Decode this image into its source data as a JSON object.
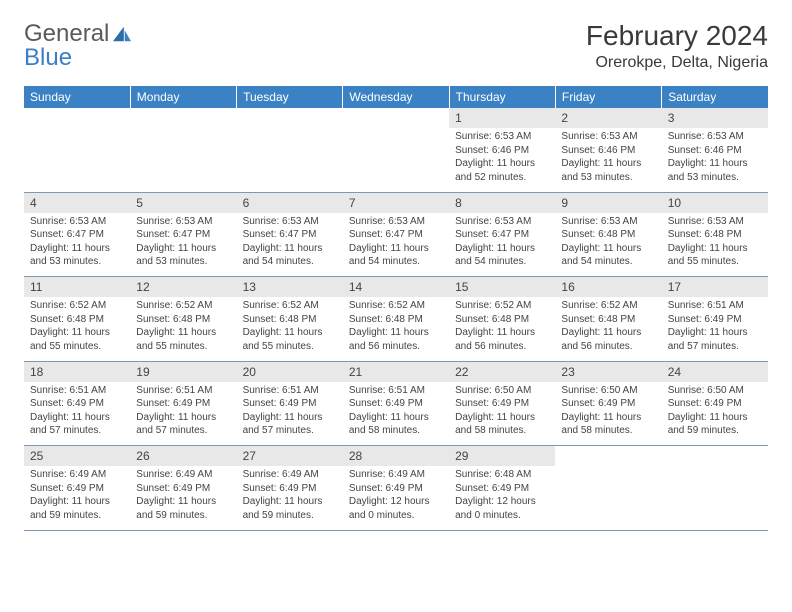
{
  "brand": {
    "word1": "General",
    "word2": "Blue"
  },
  "title": "February 2024",
  "location": "Orerokpe, Delta, Nigeria",
  "colors": {
    "header_bg": "#3b82c4",
    "header_text": "#ffffff",
    "daynum_bg": "#e8e8e8",
    "text": "#444444",
    "row_divider": "#7a98b8",
    "logo_gray": "#5a5a5a",
    "logo_blue": "#3b7fc4"
  },
  "weekdays": [
    "Sunday",
    "Monday",
    "Tuesday",
    "Wednesday",
    "Thursday",
    "Friday",
    "Saturday"
  ],
  "weeks": [
    [
      null,
      null,
      null,
      null,
      {
        "n": "1",
        "sr": "Sunrise: 6:53 AM",
        "ss": "Sunset: 6:46 PM",
        "d1": "Daylight: 11 hours",
        "d2": "and 52 minutes."
      },
      {
        "n": "2",
        "sr": "Sunrise: 6:53 AM",
        "ss": "Sunset: 6:46 PM",
        "d1": "Daylight: 11 hours",
        "d2": "and 53 minutes."
      },
      {
        "n": "3",
        "sr": "Sunrise: 6:53 AM",
        "ss": "Sunset: 6:46 PM",
        "d1": "Daylight: 11 hours",
        "d2": "and 53 minutes."
      }
    ],
    [
      {
        "n": "4",
        "sr": "Sunrise: 6:53 AM",
        "ss": "Sunset: 6:47 PM",
        "d1": "Daylight: 11 hours",
        "d2": "and 53 minutes."
      },
      {
        "n": "5",
        "sr": "Sunrise: 6:53 AM",
        "ss": "Sunset: 6:47 PM",
        "d1": "Daylight: 11 hours",
        "d2": "and 53 minutes."
      },
      {
        "n": "6",
        "sr": "Sunrise: 6:53 AM",
        "ss": "Sunset: 6:47 PM",
        "d1": "Daylight: 11 hours",
        "d2": "and 54 minutes."
      },
      {
        "n": "7",
        "sr": "Sunrise: 6:53 AM",
        "ss": "Sunset: 6:47 PM",
        "d1": "Daylight: 11 hours",
        "d2": "and 54 minutes."
      },
      {
        "n": "8",
        "sr": "Sunrise: 6:53 AM",
        "ss": "Sunset: 6:47 PM",
        "d1": "Daylight: 11 hours",
        "d2": "and 54 minutes."
      },
      {
        "n": "9",
        "sr": "Sunrise: 6:53 AM",
        "ss": "Sunset: 6:48 PM",
        "d1": "Daylight: 11 hours",
        "d2": "and 54 minutes."
      },
      {
        "n": "10",
        "sr": "Sunrise: 6:53 AM",
        "ss": "Sunset: 6:48 PM",
        "d1": "Daylight: 11 hours",
        "d2": "and 55 minutes."
      }
    ],
    [
      {
        "n": "11",
        "sr": "Sunrise: 6:52 AM",
        "ss": "Sunset: 6:48 PM",
        "d1": "Daylight: 11 hours",
        "d2": "and 55 minutes."
      },
      {
        "n": "12",
        "sr": "Sunrise: 6:52 AM",
        "ss": "Sunset: 6:48 PM",
        "d1": "Daylight: 11 hours",
        "d2": "and 55 minutes."
      },
      {
        "n": "13",
        "sr": "Sunrise: 6:52 AM",
        "ss": "Sunset: 6:48 PM",
        "d1": "Daylight: 11 hours",
        "d2": "and 55 minutes."
      },
      {
        "n": "14",
        "sr": "Sunrise: 6:52 AM",
        "ss": "Sunset: 6:48 PM",
        "d1": "Daylight: 11 hours",
        "d2": "and 56 minutes."
      },
      {
        "n": "15",
        "sr": "Sunrise: 6:52 AM",
        "ss": "Sunset: 6:48 PM",
        "d1": "Daylight: 11 hours",
        "d2": "and 56 minutes."
      },
      {
        "n": "16",
        "sr": "Sunrise: 6:52 AM",
        "ss": "Sunset: 6:48 PM",
        "d1": "Daylight: 11 hours",
        "d2": "and 56 minutes."
      },
      {
        "n": "17",
        "sr": "Sunrise: 6:51 AM",
        "ss": "Sunset: 6:49 PM",
        "d1": "Daylight: 11 hours",
        "d2": "and 57 minutes."
      }
    ],
    [
      {
        "n": "18",
        "sr": "Sunrise: 6:51 AM",
        "ss": "Sunset: 6:49 PM",
        "d1": "Daylight: 11 hours",
        "d2": "and 57 minutes."
      },
      {
        "n": "19",
        "sr": "Sunrise: 6:51 AM",
        "ss": "Sunset: 6:49 PM",
        "d1": "Daylight: 11 hours",
        "d2": "and 57 minutes."
      },
      {
        "n": "20",
        "sr": "Sunrise: 6:51 AM",
        "ss": "Sunset: 6:49 PM",
        "d1": "Daylight: 11 hours",
        "d2": "and 57 minutes."
      },
      {
        "n": "21",
        "sr": "Sunrise: 6:51 AM",
        "ss": "Sunset: 6:49 PM",
        "d1": "Daylight: 11 hours",
        "d2": "and 58 minutes."
      },
      {
        "n": "22",
        "sr": "Sunrise: 6:50 AM",
        "ss": "Sunset: 6:49 PM",
        "d1": "Daylight: 11 hours",
        "d2": "and 58 minutes."
      },
      {
        "n": "23",
        "sr": "Sunrise: 6:50 AM",
        "ss": "Sunset: 6:49 PM",
        "d1": "Daylight: 11 hours",
        "d2": "and 58 minutes."
      },
      {
        "n": "24",
        "sr": "Sunrise: 6:50 AM",
        "ss": "Sunset: 6:49 PM",
        "d1": "Daylight: 11 hours",
        "d2": "and 59 minutes."
      }
    ],
    [
      {
        "n": "25",
        "sr": "Sunrise: 6:49 AM",
        "ss": "Sunset: 6:49 PM",
        "d1": "Daylight: 11 hours",
        "d2": "and 59 minutes."
      },
      {
        "n": "26",
        "sr": "Sunrise: 6:49 AM",
        "ss": "Sunset: 6:49 PM",
        "d1": "Daylight: 11 hours",
        "d2": "and 59 minutes."
      },
      {
        "n": "27",
        "sr": "Sunrise: 6:49 AM",
        "ss": "Sunset: 6:49 PM",
        "d1": "Daylight: 11 hours",
        "d2": "and 59 minutes."
      },
      {
        "n": "28",
        "sr": "Sunrise: 6:49 AM",
        "ss": "Sunset: 6:49 PM",
        "d1": "Daylight: 12 hours",
        "d2": "and 0 minutes."
      },
      {
        "n": "29",
        "sr": "Sunrise: 6:48 AM",
        "ss": "Sunset: 6:49 PM",
        "d1": "Daylight: 12 hours",
        "d2": "and 0 minutes."
      },
      null,
      null
    ]
  ]
}
